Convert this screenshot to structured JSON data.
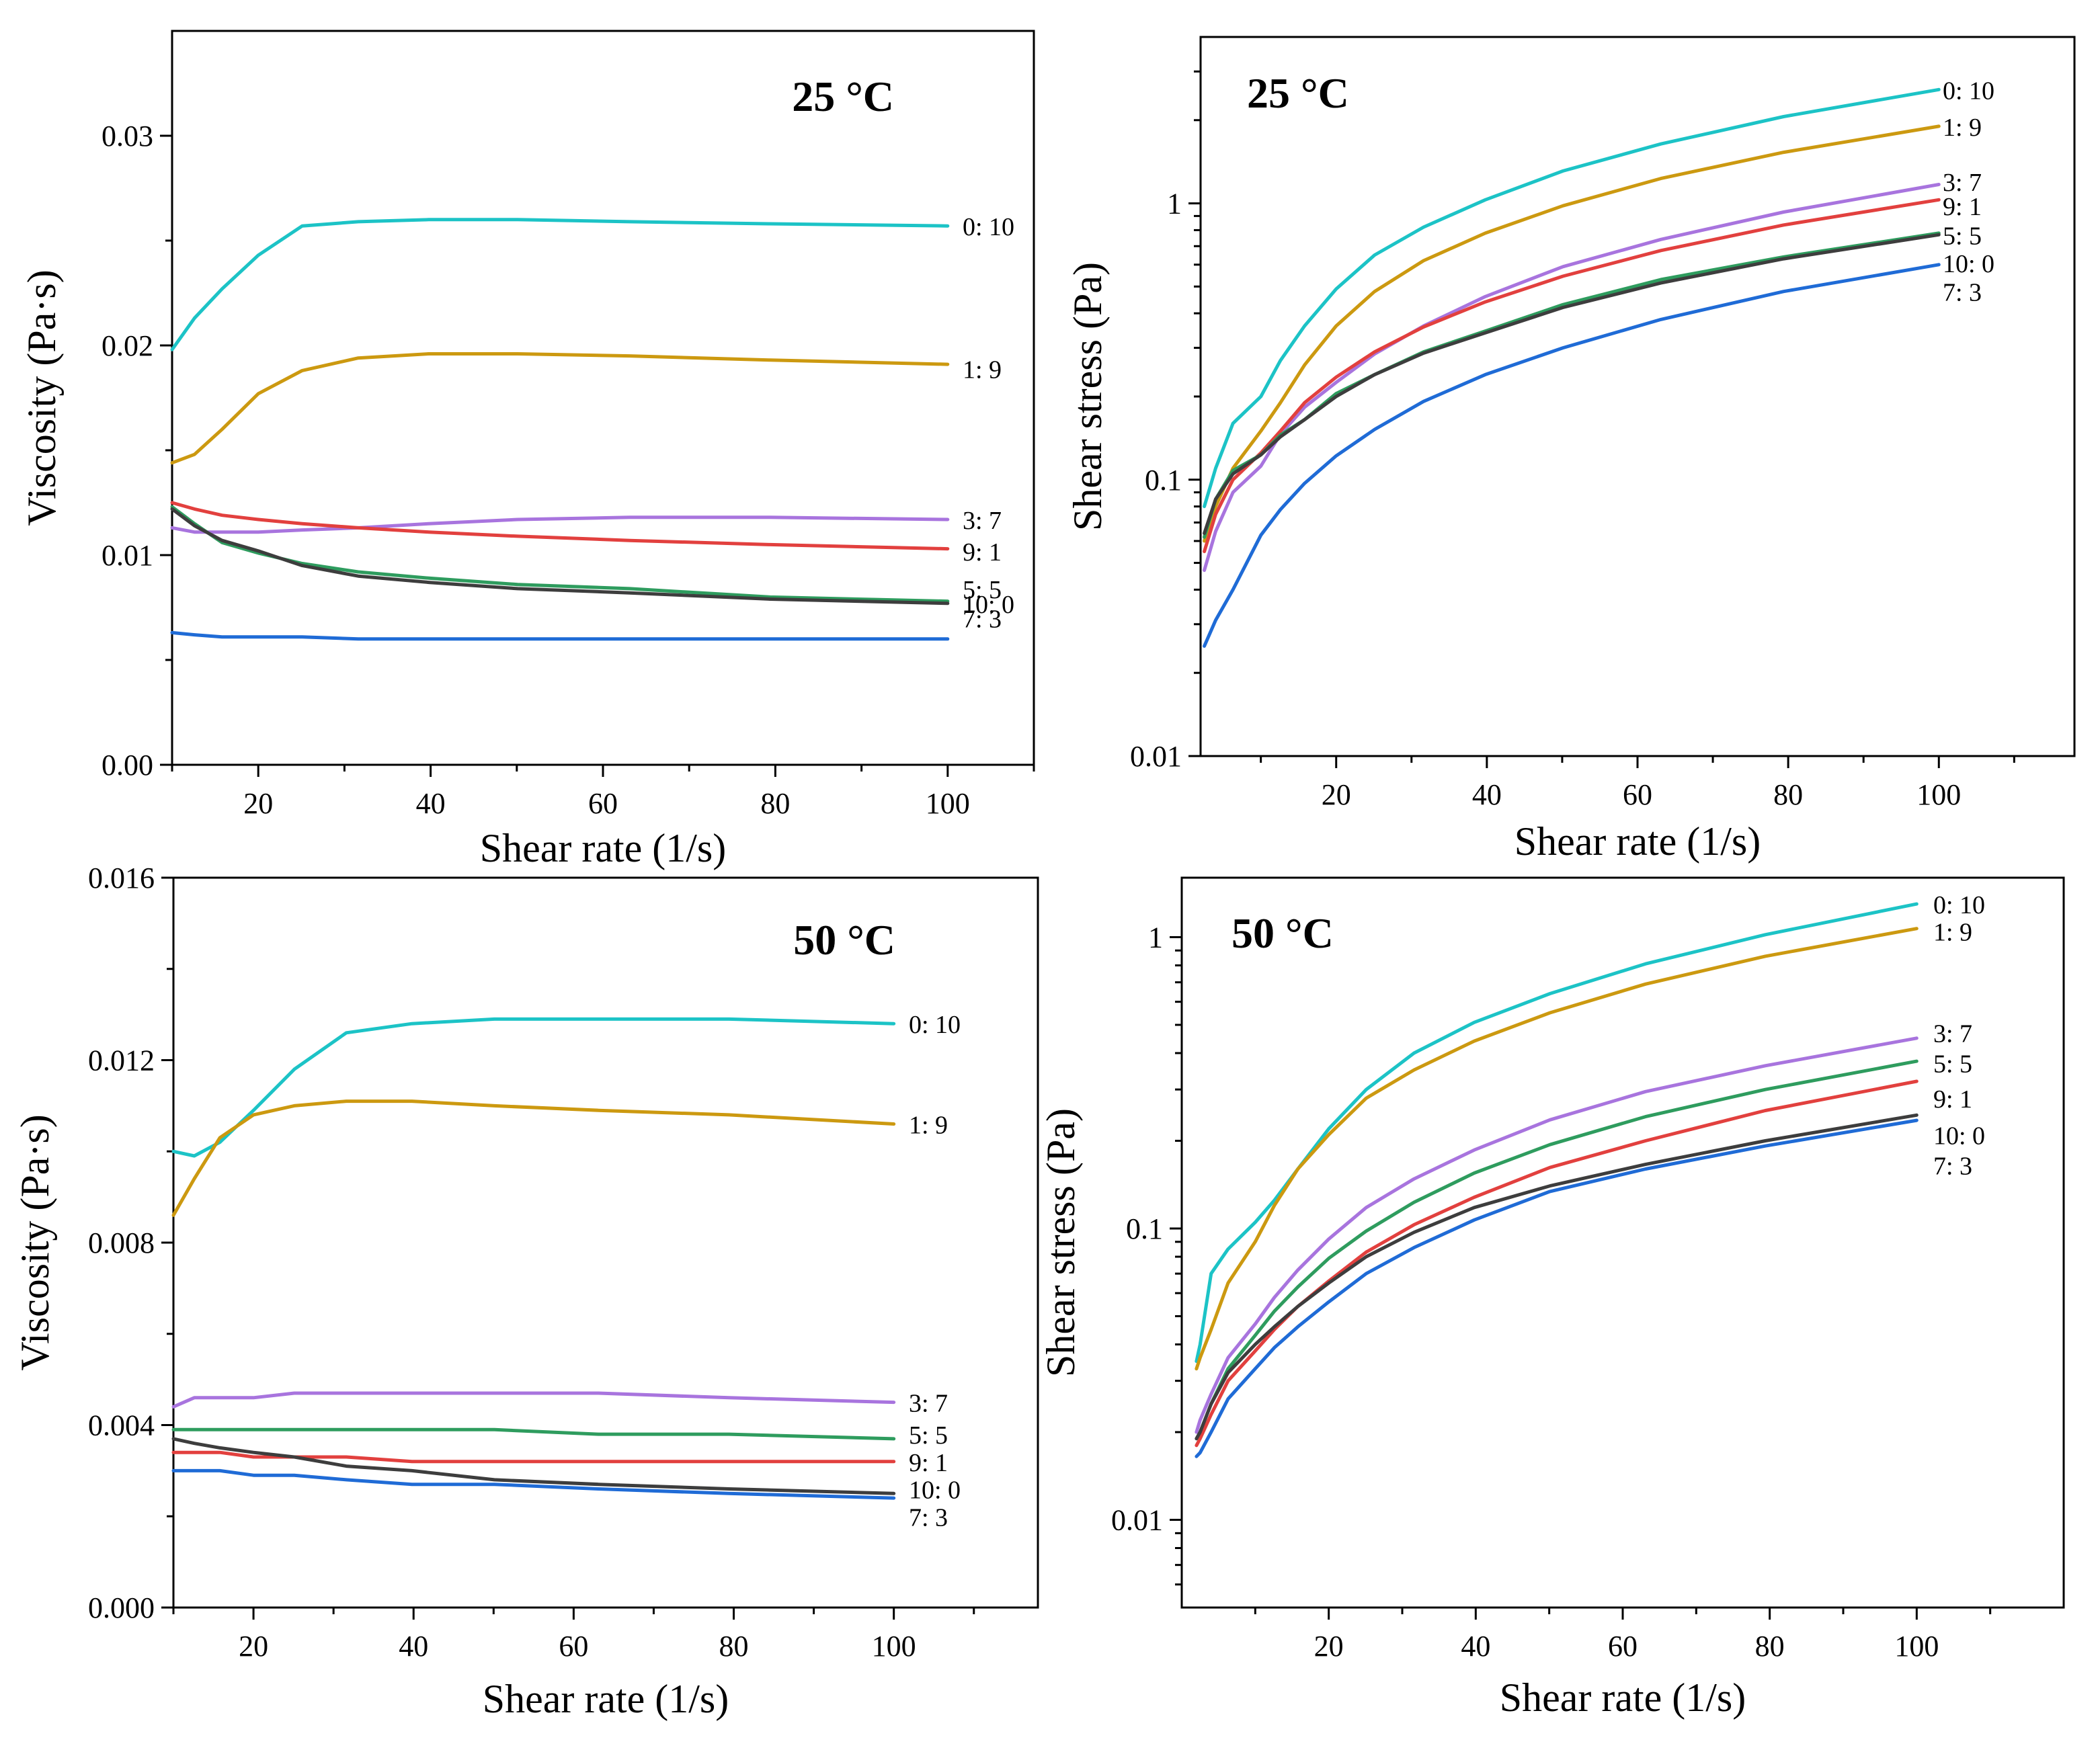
{
  "colors": {
    "0: 10": "#1cc3c6",
    "1: 9": "#cc9910",
    "3: 7": "#a874de",
    "9: 1": "#e2403e",
    "5: 5": "#2e9c5e",
    "10: 0": "#3d3d3d",
    "7: 3": "#1f6bd6"
  },
  "chart_data": [
    {
      "id": "viscosity-25",
      "type": "line",
      "title": "25 °C",
      "xlabel": "Shear rate (1/s)",
      "ylabel": "Viscosity (Pa·s)",
      "xscale": "linear",
      "yscale": "linear",
      "xlim": [
        10,
        110
      ],
      "ylim": [
        0,
        0.035
      ],
      "xticks": [
        20,
        40,
        60,
        80,
        100
      ],
      "xtick_labels": [
        "20",
        "40",
        "60",
        "80",
        "100"
      ],
      "yticks": [
        0,
        0.01,
        0.02,
        0.03
      ],
      "ytick_labels": [
        "0.00",
        "0.01",
        "0.02",
        "0.03"
      ],
      "x": [
        10,
        12.6,
        15.8,
        20,
        25.1,
        31.6,
        39.8,
        50.1,
        63.1,
        79.4,
        100
      ],
      "series": [
        {
          "name": "0: 10",
          "values": [
            0.0198,
            0.0213,
            0.0227,
            0.0243,
            0.0257,
            0.0259,
            0.026,
            0.026,
            0.0259,
            0.0258,
            0.0257
          ],
          "label_y": 0.0257
        },
        {
          "name": "1: 9",
          "values": [
            0.0144,
            0.0148,
            0.016,
            0.0177,
            0.0188,
            0.0194,
            0.0196,
            0.0196,
            0.0195,
            0.0193,
            0.0191
          ],
          "label_y": 0.0189
        },
        {
          "name": "3: 7",
          "values": [
            0.0113,
            0.0111,
            0.0111,
            0.0111,
            0.0112,
            0.0113,
            0.0115,
            0.0117,
            0.0118,
            0.0118,
            0.0117
          ],
          "label_y": 0.0117
        },
        {
          "name": "9: 1",
          "values": [
            0.0125,
            0.0122,
            0.0119,
            0.0117,
            0.0115,
            0.0113,
            0.0111,
            0.0109,
            0.0107,
            0.0105,
            0.0103
          ],
          "label_y": 0.0102
        },
        {
          "name": "5: 5",
          "values": [
            0.0123,
            0.0115,
            0.0106,
            0.0101,
            0.0096,
            0.0092,
            0.0089,
            0.0086,
            0.0084,
            0.008,
            0.0078
          ],
          "label_y": 0.0084
        },
        {
          "name": "10: 0",
          "values": [
            0.0122,
            0.0114,
            0.0107,
            0.0102,
            0.0095,
            0.009,
            0.0087,
            0.0084,
            0.0082,
            0.0079,
            0.0077
          ],
          "label_y": 0.0077
        },
        {
          "name": "7: 3",
          "values": [
            0.0063,
            0.0062,
            0.0061,
            0.0061,
            0.0061,
            0.006,
            0.006,
            0.006,
            0.006,
            0.006,
            0.006
          ],
          "label_y": 0.007
        }
      ]
    },
    {
      "id": "stress-25",
      "type": "line",
      "title": "25 °C",
      "xlabel": "Shear rate (1/s)",
      "ylabel": "Shear stress (Pa)",
      "xscale": "linear",
      "yscale": "log",
      "xlim": [
        2,
        118
      ],
      "ylim": [
        0.01,
        4
      ],
      "xticks": [
        20,
        40,
        60,
        80,
        100
      ],
      "xtick_labels": [
        "20",
        "40",
        "60",
        "80",
        "100"
      ],
      "yticks": [
        0.01,
        0.1,
        1
      ],
      "ytick_labels": [
        "0.01",
        "0.1",
        "1"
      ],
      "x": [
        2.5,
        4,
        6.3,
        10,
        12.6,
        15.8,
        20,
        25.1,
        31.6,
        39.8,
        50.1,
        63.1,
        79.4,
        100
      ],
      "series": [
        {
          "name": "0: 10",
          "values": [
            0.08,
            0.11,
            0.16,
            0.2,
            0.27,
            0.36,
            0.49,
            0.65,
            0.82,
            1.03,
            1.31,
            1.64,
            2.06,
            2.58
          ],
          "label_y": 2.58
        },
        {
          "name": "1: 9",
          "values": [
            0.06,
            0.08,
            0.11,
            0.15,
            0.19,
            0.26,
            0.36,
            0.48,
            0.62,
            0.78,
            0.98,
            1.23,
            1.53,
            1.9
          ],
          "label_y": 1.9
        },
        {
          "name": "3: 7",
          "values": [
            0.047,
            0.065,
            0.09,
            0.112,
            0.146,
            0.183,
            0.225,
            0.285,
            0.36,
            0.46,
            0.59,
            0.74,
            0.93,
            1.17
          ],
          "label_y": 1.2
        },
        {
          "name": "9: 1",
          "values": [
            0.055,
            0.075,
            0.1,
            0.125,
            0.15,
            0.19,
            0.235,
            0.29,
            0.357,
            0.44,
            0.545,
            0.675,
            0.835,
            1.03
          ],
          "label_y": 0.98
        },
        {
          "name": "5: 5",
          "values": [
            0.062,
            0.085,
            0.108,
            0.123,
            0.145,
            0.165,
            0.205,
            0.24,
            0.29,
            0.345,
            0.43,
            0.53,
            0.64,
            0.78
          ],
          "label_y": 0.77
        },
        {
          "name": "10: 0",
          "values": [
            0.064,
            0.085,
            0.105,
            0.123,
            0.143,
            0.165,
            0.2,
            0.24,
            0.287,
            0.34,
            0.42,
            0.515,
            0.63,
            0.77
          ],
          "label_y": 0.61
        },
        {
          "name": "7: 3",
          "values": [
            0.025,
            0.031,
            0.04,
            0.063,
            0.078,
            0.097,
            0.122,
            0.152,
            0.192,
            0.24,
            0.3,
            0.38,
            0.48,
            0.6
          ],
          "label_y": 0.48
        }
      ]
    },
    {
      "id": "viscosity-50",
      "type": "line",
      "title": "50 °C",
      "xlabel": "Shear rate (1/s)",
      "ylabel": "Viscosity (Pa·s)",
      "xscale": "linear",
      "yscale": "linear",
      "xlim": [
        10,
        118
      ],
      "ylim": [
        0,
        0.016
      ],
      "xticks": [
        20,
        40,
        60,
        80,
        100
      ],
      "xtick_labels": [
        "20",
        "40",
        "60",
        "80",
        "100"
      ],
      "yticks": [
        0,
        0.004,
        0.008,
        0.012,
        0.016
      ],
      "ytick_labels": [
        "0.000",
        "0.004",
        "0.008",
        "0.012",
        "0.016"
      ],
      "x": [
        10,
        12.6,
        15.8,
        20,
        25.1,
        31.6,
        39.8,
        50.1,
        63.1,
        79.4,
        100
      ],
      "series": [
        {
          "name": "0: 10",
          "values": [
            0.01,
            0.0099,
            0.0102,
            0.0109,
            0.0118,
            0.0126,
            0.0128,
            0.0129,
            0.0129,
            0.0129,
            0.0128
          ],
          "label_y": 0.0128
        },
        {
          "name": "1: 9",
          "values": [
            0.0086,
            0.0094,
            0.0103,
            0.0108,
            0.011,
            0.0111,
            0.0111,
            0.011,
            0.0109,
            0.0108,
            0.0106
          ],
          "label_y": 0.0106
        },
        {
          "name": "3: 7",
          "values": [
            0.0044,
            0.0046,
            0.0046,
            0.0046,
            0.0047,
            0.0047,
            0.0047,
            0.0047,
            0.0047,
            0.0046,
            0.0045
          ],
          "label_y": 0.0045
        },
        {
          "name": "5: 5",
          "values": [
            0.0039,
            0.0039,
            0.0039,
            0.0039,
            0.0039,
            0.0039,
            0.0039,
            0.0039,
            0.0038,
            0.0038,
            0.0037
          ],
          "label_y": 0.0038
        },
        {
          "name": "9: 1",
          "values": [
            0.0034,
            0.0034,
            0.0034,
            0.0033,
            0.0033,
            0.0033,
            0.0032,
            0.0032,
            0.0032,
            0.0032,
            0.0032
          ],
          "label_y": 0.0032
        },
        {
          "name": "10: 0",
          "values": [
            0.0037,
            0.0036,
            0.0035,
            0.0034,
            0.0033,
            0.0031,
            0.003,
            0.0028,
            0.0027,
            0.0026,
            0.0025
          ],
          "label_y": 0.0026
        },
        {
          "name": "7: 3",
          "values": [
            0.003,
            0.003,
            0.003,
            0.0029,
            0.0029,
            0.0028,
            0.0027,
            0.0027,
            0.0026,
            0.0025,
            0.0024
          ],
          "label_y": 0.002
        }
      ]
    },
    {
      "id": "stress-50",
      "type": "line",
      "title": "50 °C",
      "xlabel": "Shear rate (1/s)",
      "ylabel": "Shear stress (Pa)",
      "xscale": "linear",
      "yscale": "log",
      "xlim": [
        0,
        120
      ],
      "ylim": [
        0.005,
        1.6
      ],
      "xticks": [
        20,
        40,
        60,
        80,
        100
      ],
      "xtick_labels": [
        "20",
        "40",
        "60",
        "80",
        "100"
      ],
      "yticks": [
        0.01,
        0.1,
        1
      ],
      "ytick_labels": [
        "0.01",
        "0.1",
        "1"
      ],
      "x": [
        2,
        2.5,
        4,
        6.3,
        10,
        12.6,
        15.8,
        20,
        25.1,
        31.6,
        39.8,
        50.1,
        63.1,
        79.4,
        100
      ],
      "series": [
        {
          "name": "0: 10",
          "values": [
            0.035,
            0.04,
            0.07,
            0.085,
            0.105,
            0.125,
            0.16,
            0.22,
            0.3,
            0.4,
            0.51,
            0.64,
            0.81,
            1.02,
            1.3
          ],
          "label_y": 1.3
        },
        {
          "name": "1: 9",
          "values": [
            0.033,
            0.036,
            0.045,
            0.065,
            0.09,
            0.12,
            0.16,
            0.21,
            0.28,
            0.35,
            0.44,
            0.55,
            0.69,
            0.86,
            1.07
          ],
          "label_y": 1.05
        },
        {
          "name": "3: 7",
          "values": [
            0.02,
            0.022,
            0.027,
            0.036,
            0.047,
            0.058,
            0.072,
            0.092,
            0.118,
            0.148,
            0.186,
            0.236,
            0.295,
            0.362,
            0.45
          ],
          "label_y": 0.47
        },
        {
          "name": "5: 5",
          "values": [
            0.019,
            0.02,
            0.025,
            0.033,
            0.043,
            0.052,
            0.063,
            0.079,
            0.098,
            0.123,
            0.155,
            0.194,
            0.242,
            0.3,
            0.375
          ],
          "label_y": 0.37
        },
        {
          "name": "9: 1",
          "values": [
            0.018,
            0.019,
            0.023,
            0.03,
            0.038,
            0.045,
            0.054,
            0.066,
            0.083,
            0.103,
            0.128,
            0.162,
            0.2,
            0.254,
            0.32
          ],
          "label_y": 0.28
        },
        {
          "name": "10: 0",
          "values": [
            0.019,
            0.02,
            0.025,
            0.032,
            0.04,
            0.046,
            0.054,
            0.065,
            0.08,
            0.097,
            0.118,
            0.14,
            0.166,
            0.2,
            0.245
          ],
          "label_y": 0.21
        },
        {
          "name": "7: 3",
          "values": [
            0.0165,
            0.017,
            0.02,
            0.026,
            0.033,
            0.039,
            0.046,
            0.056,
            0.07,
            0.086,
            0.107,
            0.134,
            0.16,
            0.192,
            0.235
          ],
          "label_y": 0.165
        }
      ]
    }
  ]
}
